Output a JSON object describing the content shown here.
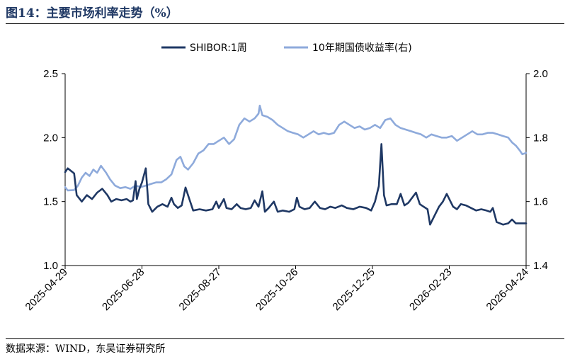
{
  "header": {
    "title": "图14：主要市场利率走势（%）"
  },
  "footer": {
    "source": "数据来源：WIND，东吴证券研究所"
  },
  "colors": {
    "shibor": "#1f3864",
    "bond": "#8eaadb"
  },
  "chart_data": {
    "type": "line",
    "title": "主要市场利率走势（%）",
    "x_tick_labels": [
      "2025-04-29",
      "2025-06-28",
      "2025-08-27",
      "2025-10-26",
      "2025-12-25",
      "2026-02-23",
      "2026-04-24"
    ],
    "xlim": [
      "2025-04-29",
      "2026-04-24"
    ],
    "y_left": {
      "ylim": [
        1.0,
        2.5
      ],
      "ticks": [
        "1.0",
        "1.5",
        "2.0",
        "2.5"
      ]
    },
    "y_right": {
      "ylim": [
        1.4,
        2.0
      ],
      "ticks": [
        "1.4",
        "1.6",
        "1.8",
        "2.0"
      ]
    },
    "legend_position": "top-center",
    "series": [
      {
        "name": "SHIBOR:1周",
        "axis": "left",
        "points": [
          [
            "2025-04-29",
            1.73
          ],
          [
            "2025-05-01",
            1.76
          ],
          [
            "2025-05-06",
            1.72
          ],
          [
            "2025-05-08",
            1.55
          ],
          [
            "2025-05-12",
            1.5
          ],
          [
            "2025-05-16",
            1.55
          ],
          [
            "2025-05-20",
            1.52
          ],
          [
            "2025-05-24",
            1.57
          ],
          [
            "2025-05-28",
            1.6
          ],
          [
            "2025-06-01",
            1.55
          ],
          [
            "2025-06-04",
            1.5
          ],
          [
            "2025-06-08",
            1.52
          ],
          [
            "2025-06-12",
            1.51
          ],
          [
            "2025-06-16",
            1.52
          ],
          [
            "2025-06-19",
            1.5
          ],
          [
            "2025-06-21",
            1.51
          ],
          [
            "2025-06-23",
            1.66
          ],
          [
            "2025-06-24",
            1.52
          ],
          [
            "2025-06-26",
            1.6
          ],
          [
            "2025-06-28",
            1.65
          ],
          [
            "2025-07-01",
            1.76
          ],
          [
            "2025-07-03",
            1.48
          ],
          [
            "2025-07-06",
            1.42
          ],
          [
            "2025-07-10",
            1.46
          ],
          [
            "2025-07-14",
            1.48
          ],
          [
            "2025-07-18",
            1.46
          ],
          [
            "2025-07-21",
            1.53
          ],
          [
            "2025-07-23",
            1.48
          ],
          [
            "2025-07-26",
            1.45
          ],
          [
            "2025-07-29",
            1.47
          ],
          [
            "2025-08-01",
            1.61
          ],
          [
            "2025-08-04",
            1.52
          ],
          [
            "2025-08-07",
            1.43
          ],
          [
            "2025-08-12",
            1.44
          ],
          [
            "2025-08-17",
            1.43
          ],
          [
            "2025-08-22",
            1.44
          ],
          [
            "2025-08-25",
            1.5
          ],
          [
            "2025-08-27",
            1.45
          ],
          [
            "2025-08-31",
            1.52
          ],
          [
            "2025-09-02",
            1.45
          ],
          [
            "2025-09-06",
            1.44
          ],
          [
            "2025-09-10",
            1.48
          ],
          [
            "2025-09-13",
            1.45
          ],
          [
            "2025-09-17",
            1.44
          ],
          [
            "2025-09-21",
            1.45
          ],
          [
            "2025-09-24",
            1.51
          ],
          [
            "2025-09-27",
            1.46
          ],
          [
            "2025-09-30",
            1.58
          ],
          [
            "2025-10-02",
            1.42
          ],
          [
            "2025-10-05",
            1.45
          ],
          [
            "2025-10-09",
            1.5
          ],
          [
            "2025-10-12",
            1.42
          ],
          [
            "2025-10-16",
            1.43
          ],
          [
            "2025-10-21",
            1.42
          ],
          [
            "2025-10-25",
            1.44
          ],
          [
            "2025-10-27",
            1.53
          ],
          [
            "2025-10-29",
            1.46
          ],
          [
            "2025-11-02",
            1.44
          ],
          [
            "2025-11-06",
            1.45
          ],
          [
            "2025-11-10",
            1.5
          ],
          [
            "2025-11-14",
            1.45
          ],
          [
            "2025-11-18",
            1.44
          ],
          [
            "2025-11-22",
            1.46
          ],
          [
            "2025-11-26",
            1.45
          ],
          [
            "2025-12-01",
            1.47
          ],
          [
            "2025-12-05",
            1.45
          ],
          [
            "2025-12-10",
            1.44
          ],
          [
            "2025-12-15",
            1.46
          ],
          [
            "2025-12-20",
            1.45
          ],
          [
            "2025-12-24",
            1.43
          ],
          [
            "2025-12-27",
            1.5
          ],
          [
            "2025-12-30",
            1.62
          ],
          [
            "2026-01-01",
            1.95
          ],
          [
            "2026-01-03",
            1.55
          ],
          [
            "2026-01-05",
            1.47
          ],
          [
            "2026-01-09",
            1.48
          ],
          [
            "2026-01-13",
            1.48
          ],
          [
            "2026-01-16",
            1.56
          ],
          [
            "2026-01-19",
            1.47
          ],
          [
            "2026-01-22",
            1.49
          ],
          [
            "2026-01-25",
            1.53
          ],
          [
            "2026-01-28",
            1.57
          ],
          [
            "2026-01-31",
            1.48
          ],
          [
            "2026-02-03",
            1.46
          ],
          [
            "2026-02-06",
            1.44
          ],
          [
            "2026-02-08",
            1.32
          ],
          [
            "2026-02-12",
            1.4
          ],
          [
            "2026-02-15",
            1.46
          ],
          [
            "2026-02-18",
            1.5
          ],
          [
            "2026-02-21",
            1.56
          ],
          [
            "2026-02-23",
            1.52
          ],
          [
            "2026-02-26",
            1.46
          ],
          [
            "2026-03-01",
            1.44
          ],
          [
            "2026-03-04",
            1.48
          ],
          [
            "2026-03-08",
            1.47
          ],
          [
            "2026-03-12",
            1.45
          ],
          [
            "2026-03-16",
            1.43
          ],
          [
            "2026-03-20",
            1.44
          ],
          [
            "2026-03-24",
            1.43
          ],
          [
            "2026-03-27",
            1.42
          ],
          [
            "2026-03-29",
            1.45
          ],
          [
            "2026-04-01",
            1.34
          ],
          [
            "2026-04-06",
            1.32
          ],
          [
            "2026-04-10",
            1.33
          ],
          [
            "2026-04-13",
            1.36
          ],
          [
            "2026-04-16",
            1.33
          ],
          [
            "2026-04-24",
            1.33
          ]
        ]
      },
      {
        "name": "10年期国债收益率(右)",
        "axis": "right",
        "points": [
          [
            "2025-04-29",
            1.645
          ],
          [
            "2025-05-01",
            1.635
          ],
          [
            "2025-05-06",
            1.636
          ],
          [
            "2025-05-09",
            1.65
          ],
          [
            "2025-05-12",
            1.675
          ],
          [
            "2025-05-15",
            1.69
          ],
          [
            "2025-05-18",
            1.68
          ],
          [
            "2025-05-21",
            1.7
          ],
          [
            "2025-05-24",
            1.69
          ],
          [
            "2025-05-27",
            1.712
          ],
          [
            "2025-05-31",
            1.69
          ],
          [
            "2025-06-03",
            1.67
          ],
          [
            "2025-06-07",
            1.65
          ],
          [
            "2025-06-11",
            1.642
          ],
          [
            "2025-06-15",
            1.645
          ],
          [
            "2025-06-19",
            1.64
          ],
          [
            "2025-06-23",
            1.65
          ],
          [
            "2025-06-27",
            1.645
          ],
          [
            "2025-07-01",
            1.65
          ],
          [
            "2025-07-05",
            1.655
          ],
          [
            "2025-07-09",
            1.66
          ],
          [
            "2025-07-13",
            1.66
          ],
          [
            "2025-07-17",
            1.67
          ],
          [
            "2025-07-21",
            1.685
          ],
          [
            "2025-07-25",
            1.73
          ],
          [
            "2025-07-28",
            1.74
          ],
          [
            "2025-07-31",
            1.71
          ],
          [
            "2025-08-03",
            1.7
          ],
          [
            "2025-08-07",
            1.72
          ],
          [
            "2025-08-11",
            1.75
          ],
          [
            "2025-08-15",
            1.76
          ],
          [
            "2025-08-19",
            1.78
          ],
          [
            "2025-08-23",
            1.78
          ],
          [
            "2025-08-27",
            1.79
          ],
          [
            "2025-08-31",
            1.8
          ],
          [
            "2025-09-04",
            1.78
          ],
          [
            "2025-09-08",
            1.795
          ],
          [
            "2025-09-12",
            1.84
          ],
          [
            "2025-09-16",
            1.86
          ],
          [
            "2025-09-20",
            1.85
          ],
          [
            "2025-09-24",
            1.86
          ],
          [
            "2025-09-27",
            1.875
          ],
          [
            "2025-09-28",
            1.9
          ],
          [
            "2025-09-30",
            1.87
          ],
          [
            "2025-10-04",
            1.865
          ],
          [
            "2025-10-08",
            1.855
          ],
          [
            "2025-10-12",
            1.84
          ],
          [
            "2025-10-16",
            1.83
          ],
          [
            "2025-10-20",
            1.82
          ],
          [
            "2025-10-24",
            1.815
          ],
          [
            "2025-10-28",
            1.81
          ],
          [
            "2025-11-01",
            1.8
          ],
          [
            "2025-11-05",
            1.81
          ],
          [
            "2025-11-09",
            1.82
          ],
          [
            "2025-11-13",
            1.81
          ],
          [
            "2025-11-17",
            1.815
          ],
          [
            "2025-11-21",
            1.81
          ],
          [
            "2025-11-25",
            1.815
          ],
          [
            "2025-11-29",
            1.84
          ],
          [
            "2025-12-03",
            1.85
          ],
          [
            "2025-12-07",
            1.84
          ],
          [
            "2025-12-11",
            1.83
          ],
          [
            "2025-12-15",
            1.835
          ],
          [
            "2025-12-19",
            1.825
          ],
          [
            "2025-12-23",
            1.83
          ],
          [
            "2025-12-27",
            1.84
          ],
          [
            "2025-12-31",
            1.83
          ],
          [
            "2026-01-04",
            1.855
          ],
          [
            "2026-01-08",
            1.86
          ],
          [
            "2026-01-12",
            1.84
          ],
          [
            "2026-01-16",
            1.83
          ],
          [
            "2026-01-20",
            1.825
          ],
          [
            "2026-01-24",
            1.82
          ],
          [
            "2026-01-28",
            1.815
          ],
          [
            "2026-02-01",
            1.81
          ],
          [
            "2026-02-05",
            1.8
          ],
          [
            "2026-02-09",
            1.81
          ],
          [
            "2026-02-13",
            1.805
          ],
          [
            "2026-02-17",
            1.8
          ],
          [
            "2026-02-21",
            1.8
          ],
          [
            "2026-02-25",
            1.805
          ],
          [
            "2026-03-01",
            1.79
          ],
          [
            "2026-03-05",
            1.8
          ],
          [
            "2026-03-09",
            1.81
          ],
          [
            "2026-03-13",
            1.82
          ],
          [
            "2026-03-17",
            1.81
          ],
          [
            "2026-03-21",
            1.81
          ],
          [
            "2026-03-25",
            1.815
          ],
          [
            "2026-03-29",
            1.815
          ],
          [
            "2026-04-02",
            1.81
          ],
          [
            "2026-04-06",
            1.805
          ],
          [
            "2026-04-10",
            1.8
          ],
          [
            "2026-04-13",
            1.785
          ],
          [
            "2026-04-16",
            1.775
          ],
          [
            "2026-04-19",
            1.76
          ],
          [
            "2026-04-21",
            1.748
          ],
          [
            "2026-04-24",
            1.752
          ]
        ]
      }
    ]
  }
}
